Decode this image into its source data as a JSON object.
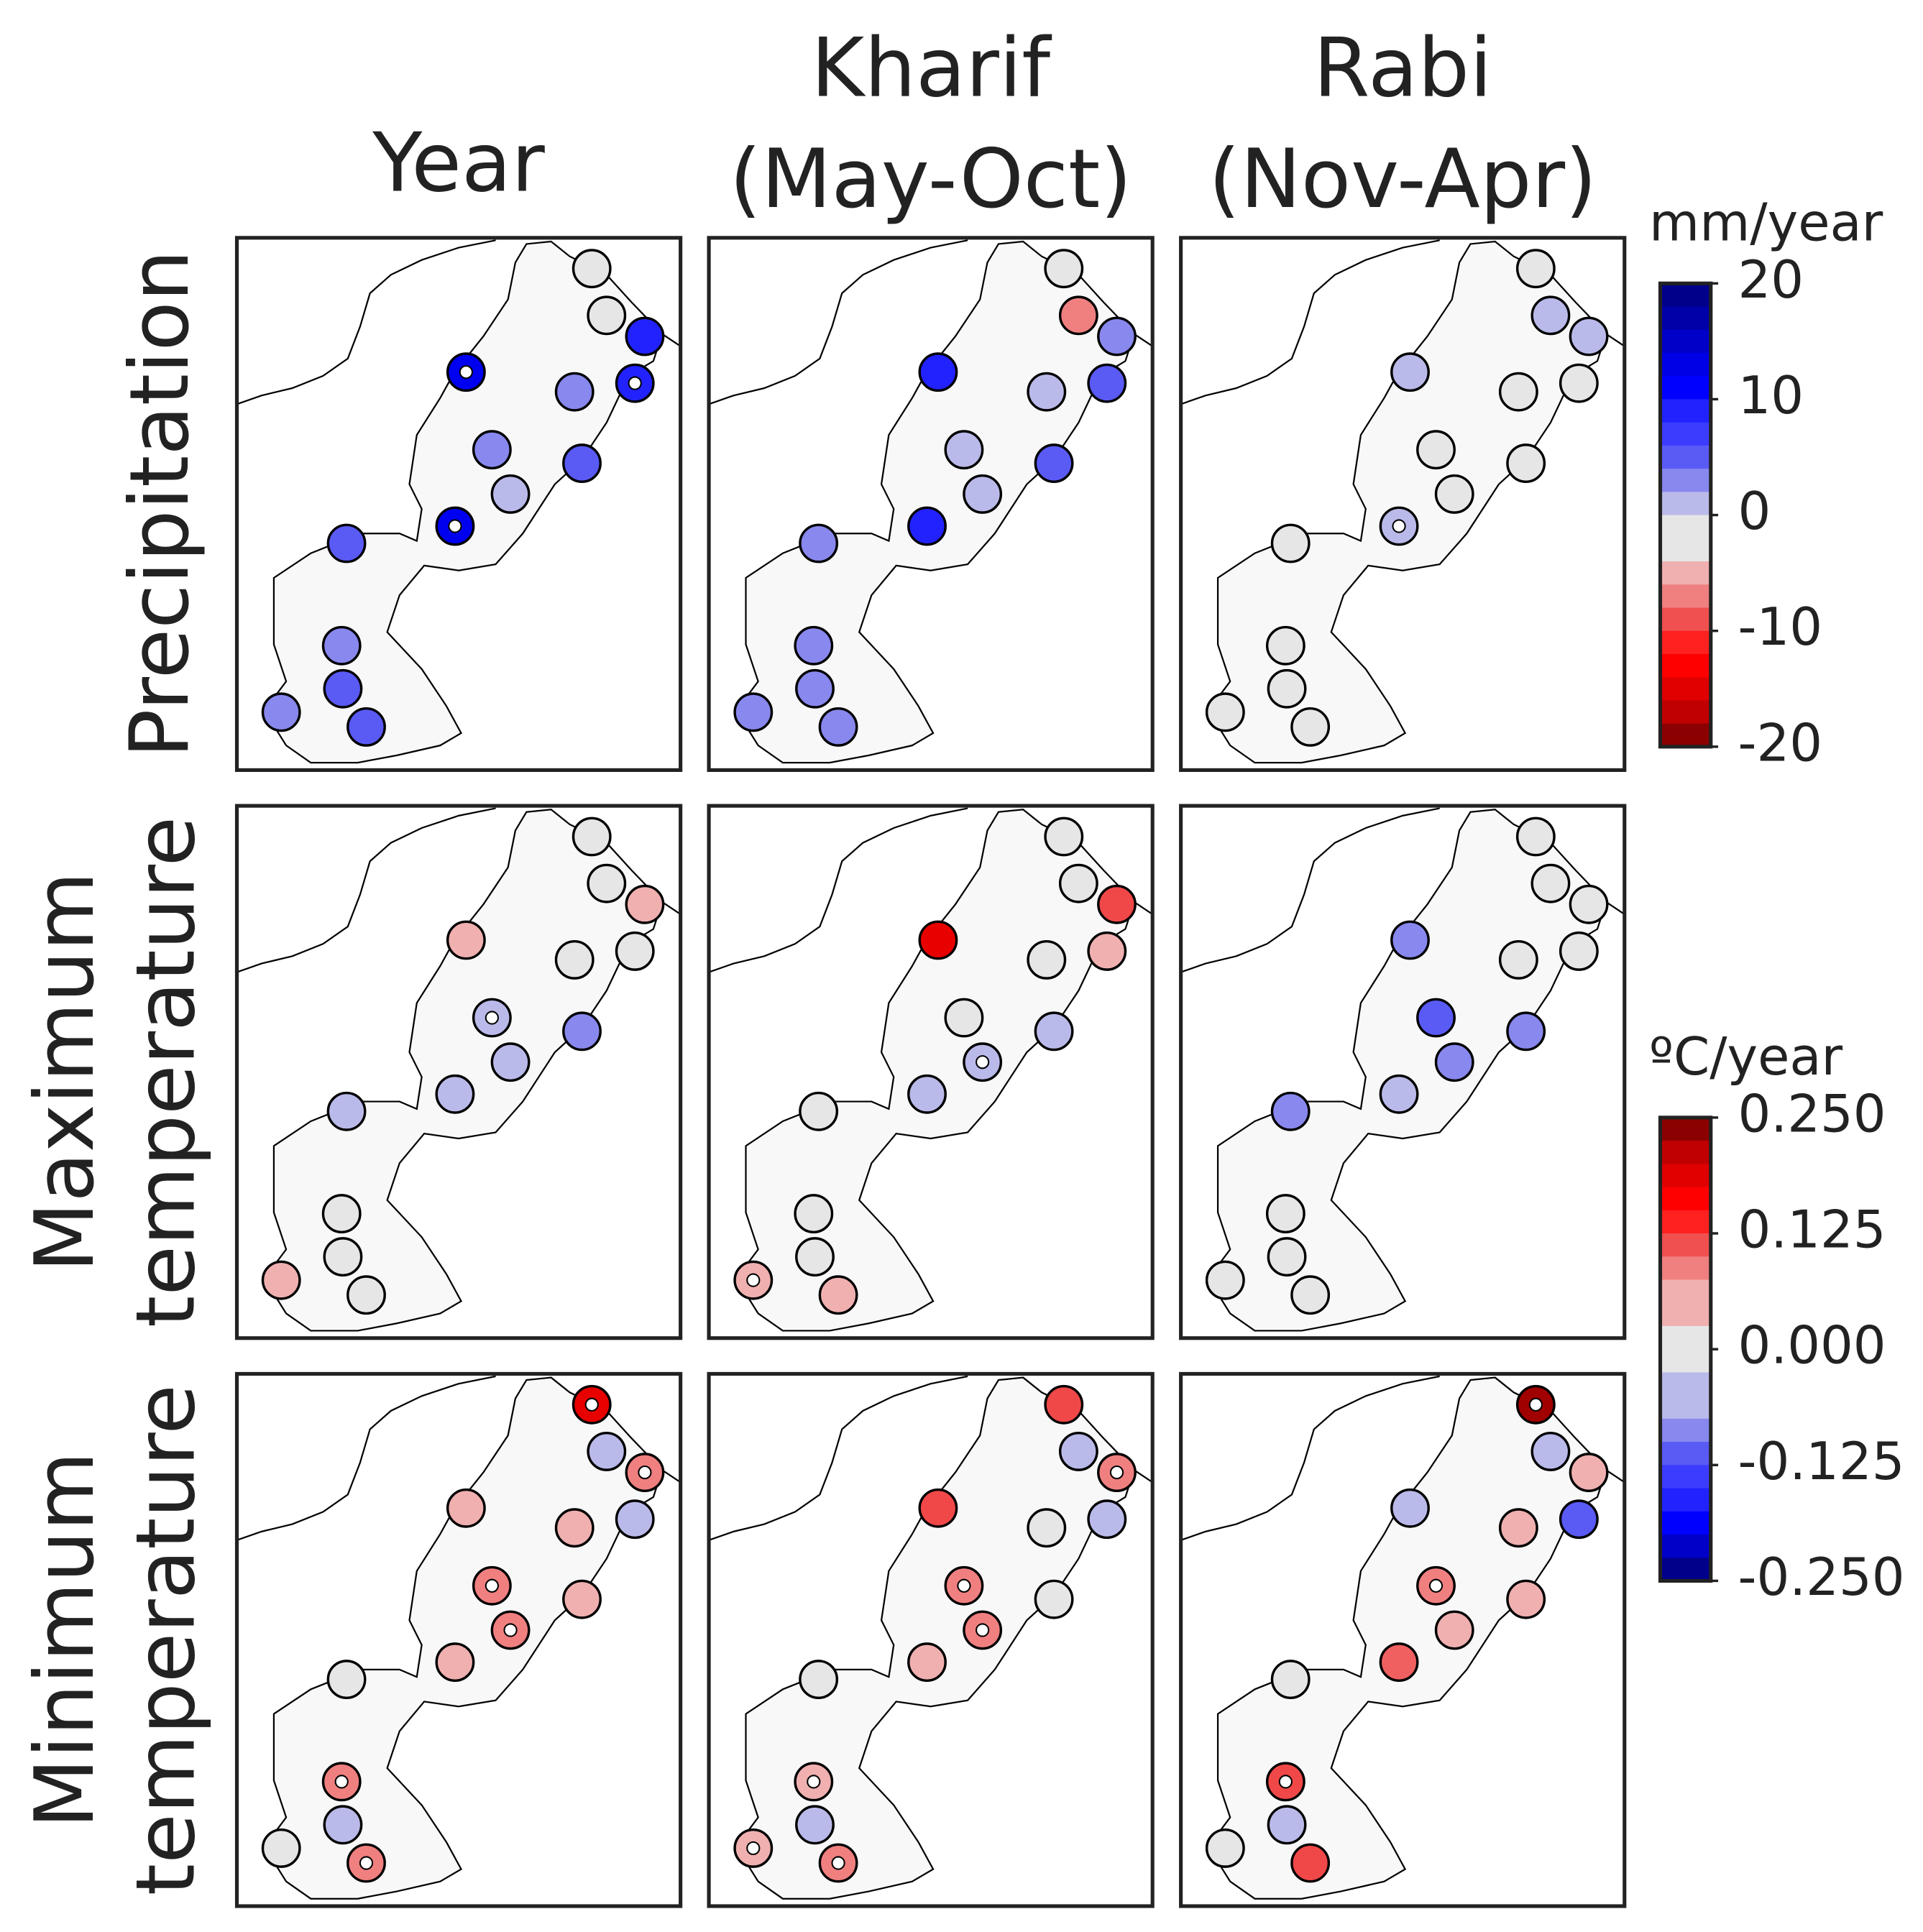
{
  "columns": [
    [
      "Year"
    ],
    [
      "Kharif",
      "(May-Oct)"
    ],
    [
      "Rabi",
      "(Nov-Apr)"
    ]
  ],
  "rows": [
    [
      "Precipitation"
    ],
    [
      "Maximum",
      "temperature"
    ],
    [
      "Minimum",
      "temperature"
    ]
  ],
  "colorbars": [
    {
      "unit": "mm/year",
      "lim": [
        -20,
        20
      ],
      "ticks": [
        20,
        10,
        0,
        -10,
        -20
      ],
      "bands": [
        "#00008b",
        "#0000a8",
        "#0000c8",
        "#0000e6",
        "#0000ff",
        "#2222ff",
        "#3c3cff",
        "#5a5af5",
        "#8888ee",
        "#babaea",
        "#e6e6e6",
        "#e6e6e6",
        "#f0b0b0",
        "#f08080",
        "#f05050",
        "#ff2020",
        "#ff0000",
        "#e00000",
        "#c00000",
        "#8b0000"
      ]
    },
    {
      "unit": "ºC/year",
      "lim": [
        -0.25,
        0.25
      ],
      "ticks": [
        {
          "value": 0.25,
          "label": "0.250"
        },
        {
          "value": 0.125,
          "label": "0.125"
        },
        {
          "value": 0,
          "label": "0.000"
        },
        {
          "value": -0.125,
          "label": "-0.125"
        },
        {
          "value": -0.25,
          "label": "-0.250"
        }
      ],
      "bands": [
        "#8b0000",
        "#c00000",
        "#e00000",
        "#ff0000",
        "#ff2020",
        "#f05050",
        "#f08080",
        "#f0b0b0",
        "#f0b0b0",
        "#e6e6e6",
        "#e6e6e6",
        "#babaea",
        "#babaea",
        "#8888ee",
        "#5a5af5",
        "#3c3cff",
        "#2222ff",
        "#0000ff",
        "#0000c8",
        "#00008b"
      ]
    }
  ],
  "panels": [
    [
      {
        "colors": [
          "#e6e6e6",
          "#e6e6e6",
          "#2222ff",
          "#0000f0",
          "#2222ff",
          "#8888ee",
          "#8888ee",
          "#5a5af5",
          "#babaea",
          "#0000f0",
          "#5a5af5",
          "#8888ee",
          "#5a5af5",
          "#8888ee",
          "#5a5af5"
        ],
        "significant": [
          4,
          5,
          10
        ]
      },
      {
        "colors": [
          "#e6e6e6",
          "#f08080",
          "#8888ee",
          "#2222ff",
          "#5a5af5",
          "#babaea",
          "#babaea",
          "#5a5af5",
          "#babaea",
          "#2222ff",
          "#8888ee",
          "#8888ee",
          "#8888ee",
          "#8888ee",
          "#8888ee"
        ],
        "significant": []
      },
      {
        "colors": [
          "#e6e6e6",
          "#babaea",
          "#babaea",
          "#babaea",
          "#e6e6e6",
          "#e6e6e6",
          "#e6e6e6",
          "#e6e6e6",
          "#e6e6e6",
          "#babaea",
          "#e6e6e6",
          "#e6e6e6",
          "#e6e6e6",
          "#e6e6e6",
          "#e6e6e6"
        ],
        "significant": [
          10
        ]
      }
    ],
    [
      {
        "colors": [
          "#e6e6e6",
          "#e6e6e6",
          "#f0b0b0",
          "#f0b0b0",
          "#e6e6e6",
          "#e6e6e6",
          "#babaea",
          "#8888ee",
          "#babaea",
          "#babaea",
          "#babaea",
          "#e6e6e6",
          "#e6e6e6",
          "#f0b0b0",
          "#e6e6e6"
        ],
        "significant": [
          7
        ]
      },
      {
        "colors": [
          "#e6e6e6",
          "#e6e6e6",
          "#f04848",
          "#e80000",
          "#f0b0b0",
          "#e6e6e6",
          "#e6e6e6",
          "#babaea",
          "#babaea",
          "#babaea",
          "#e6e6e6",
          "#e6e6e6",
          "#e6e6e6",
          "#f0b0b0",
          "#f0b0b0"
        ],
        "significant": [
          9,
          14
        ]
      },
      {
        "colors": [
          "#e6e6e6",
          "#e6e6e6",
          "#e6e6e6",
          "#8888ee",
          "#e6e6e6",
          "#e6e6e6",
          "#5a5af5",
          "#8888ee",
          "#8888ee",
          "#babaea",
          "#8888ee",
          "#e6e6e6",
          "#e6e6e6",
          "#e6e6e6",
          "#e6e6e6"
        ],
        "significant": []
      }
    ],
    [
      {
        "colors": [
          "#e80000",
          "#babaea",
          "#f08080",
          "#f0b0b0",
          "#babaea",
          "#f0b0b0",
          "#f08080",
          "#f0b0b0",
          "#f08080",
          "#f0b0b0",
          "#e6e6e6",
          "#f08080",
          "#babaea",
          "#e6e6e6",
          "#f08080"
        ],
        "significant": [
          1,
          3,
          7,
          9,
          12,
          15
        ]
      },
      {
        "colors": [
          "#f04848",
          "#babaea",
          "#f08080",
          "#f04848",
          "#babaea",
          "#e6e6e6",
          "#f08080",
          "#e6e6e6",
          "#f08080",
          "#f0b0b0",
          "#e6e6e6",
          "#f0b0b0",
          "#babaea",
          "#f0b0b0",
          "#f08080"
        ],
        "significant": [
          3,
          7,
          9,
          12,
          14,
          15
        ]
      },
      {
        "colors": [
          "#a00000",
          "#babaea",
          "#f0b0b0",
          "#babaea",
          "#5a5af5",
          "#f0b0b0",
          "#f08080",
          "#f0b0b0",
          "#f0b0b0",
          "#f06060",
          "#e6e6e6",
          "#f04848",
          "#babaea",
          "#e6e6e6",
          "#f04848"
        ],
        "significant": [
          1,
          7,
          12
        ]
      }
    ]
  ]
}
